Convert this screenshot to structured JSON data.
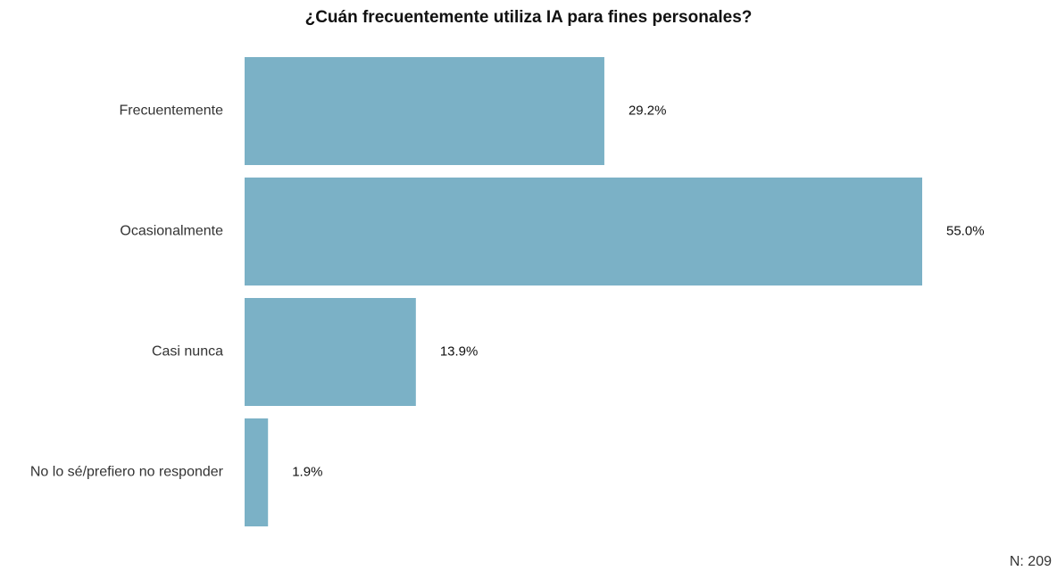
{
  "chart_data": {
    "type": "bar",
    "orientation": "horizontal",
    "title": "¿Cuán frecuentemente utiliza IA para fines personales?",
    "categories": [
      "Frecuentemente",
      "Ocasionalmente",
      "Casi nunca",
      "No lo sé/prefiero no responder"
    ],
    "values": [
      29.2,
      55.0,
      13.9,
      1.9
    ],
    "value_labels": [
      "29.2%",
      "55.0%",
      "13.9%",
      "1.9%"
    ],
    "color": "#7bb1c6",
    "note": "N: 209"
  }
}
